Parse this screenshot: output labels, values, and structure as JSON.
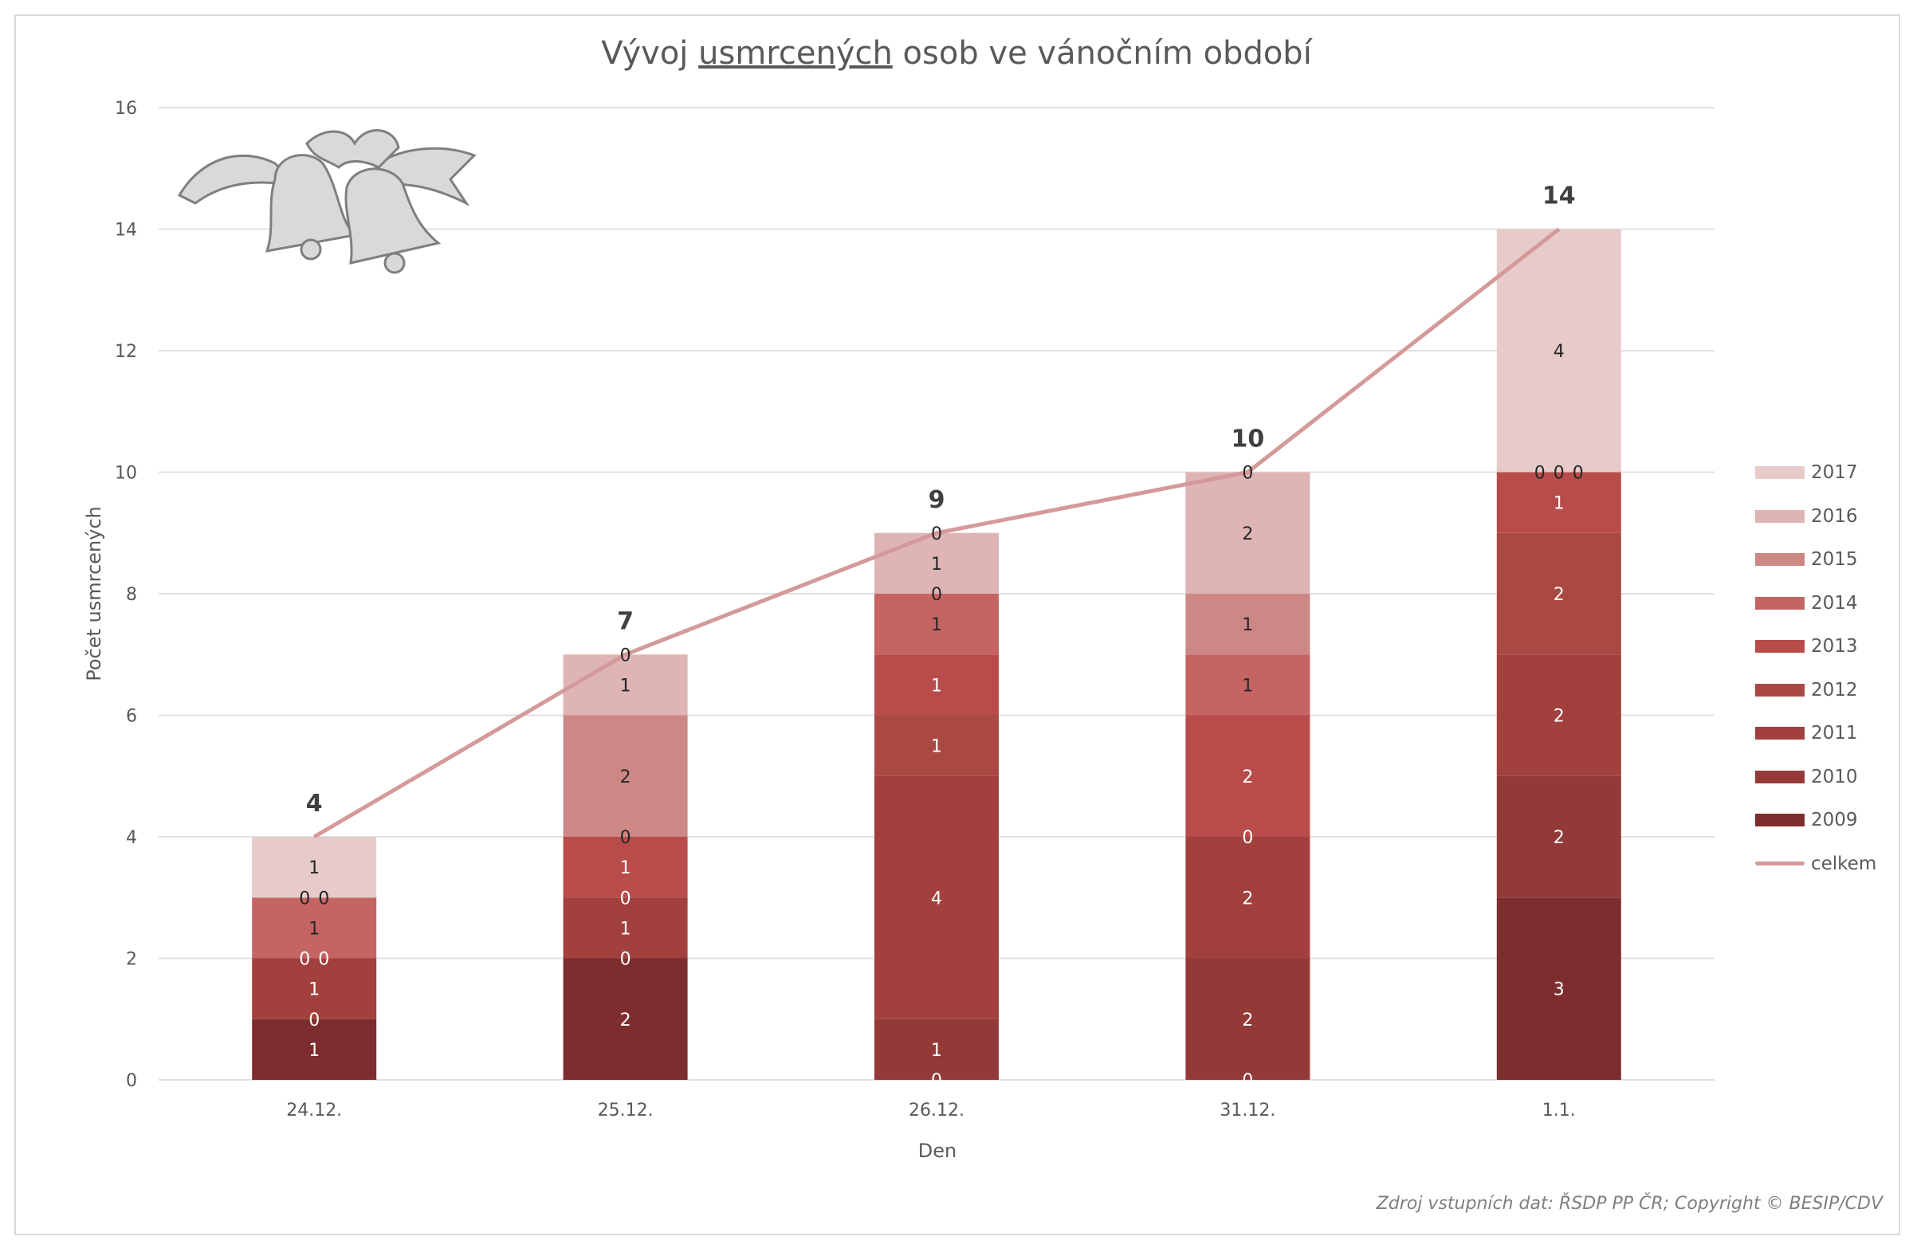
{
  "title": {
    "before": "Vývoj ",
    "underlined": "usmrcených",
    "after": " osob ve vánočním období"
  },
  "source": "Zdroj vstupních dat: ŘSDP PP ČR; Copyright © BESIP/CDV",
  "chart_data": {
    "type": "bar",
    "stacked": true,
    "title": "Vývoj usmrcených osob ve vánočním období",
    "xlabel": "Den",
    "ylabel": "Počet usmrcených",
    "ylim": [
      0,
      16
    ],
    "yticks": [
      0,
      2,
      4,
      6,
      8,
      10,
      12,
      14,
      16
    ],
    "grid": true,
    "legend": "right",
    "categories": [
      "24.12.",
      "25.12.",
      "26.12.",
      "31.12.",
      "1.1."
    ],
    "series": [
      {
        "name": "2009",
        "color": "#7e2d2e",
        "values": [
          1,
          2,
          0,
          0,
          3
        ]
      },
      {
        "name": "2010",
        "color": "#933a39",
        "values": [
          0,
          0,
          1,
          2,
          2
        ]
      },
      {
        "name": "2011",
        "color": "#a2403d",
        "values": [
          1,
          1,
          4,
          2,
          2
        ]
      },
      {
        "name": "2012",
        "color": "#aa4844",
        "values": [
          0,
          0,
          1,
          0,
          2
        ]
      },
      {
        "name": "2013",
        "color": "#b84c4a",
        "values": [
          0,
          1,
          1,
          2,
          1
        ]
      },
      {
        "name": "2014",
        "color": "#c46563",
        "values": [
          1,
          0,
          1,
          1,
          0
        ]
      },
      {
        "name": "2015",
        "color": "#cd8785",
        "values": [
          0,
          2,
          0,
          1,
          0
        ]
      },
      {
        "name": "2016",
        "color": "#deb5b4",
        "values": [
          0,
          1,
          1,
          2,
          0
        ]
      },
      {
        "name": "2017",
        "color": "#e7cbcb",
        "values": [
          1,
          0,
          0,
          0,
          4
        ]
      }
    ],
    "line": {
      "name": "celkem",
      "color": "#d49a9a",
      "values": [
        4,
        7,
        9,
        10,
        14
      ]
    }
  }
}
